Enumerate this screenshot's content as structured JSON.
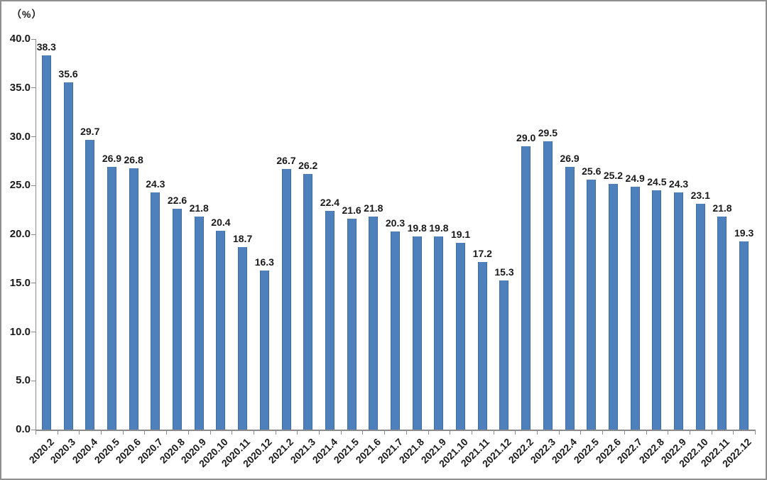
{
  "chart_data": {
    "type": "bar",
    "title": "",
    "unit_label": "（%）",
    "xlabel": "",
    "ylabel": "（%）",
    "categories": [
      "2020.2",
      "2020.3",
      "2020.4",
      "2020.5",
      "2020.6",
      "2020.7",
      "2020.8",
      "2020.9",
      "2020.10",
      "2020.11",
      "2020.12",
      "2021.2",
      "2021.3",
      "2021.4",
      "2021.5",
      "2021.6",
      "2021.7",
      "2021.8",
      "2021.9",
      "2021.10",
      "2021.11",
      "2021.12",
      "2022.2",
      "2022.3",
      "2022.4",
      "2022.5",
      "2022.6",
      "2022.7",
      "2022.8",
      "2022.9",
      "2022.10",
      "2022.11",
      "2022.12"
    ],
    "values": [
      38.3,
      35.6,
      29.7,
      26.9,
      26.8,
      24.3,
      22.6,
      21.8,
      20.4,
      18.7,
      16.3,
      26.7,
      26.2,
      22.4,
      21.6,
      21.8,
      20.3,
      19.8,
      19.8,
      19.1,
      17.2,
      15.3,
      29.0,
      29.5,
      26.9,
      25.6,
      25.2,
      24.9,
      24.5,
      24.3,
      23.1,
      21.8,
      19.3
    ],
    "data_labels": [
      "38.3",
      "35.6",
      "29.7",
      "26.9",
      "26.8",
      "24.3",
      "22.6",
      "21.8",
      "20.4",
      "18.7",
      "16.3",
      "26.7",
      "26.2",
      "22.4",
      "21.6",
      "21.8",
      "20.3",
      "19.8",
      "19.8",
      "19.1",
      "17.2",
      "15.3",
      "29.0",
      "29.5",
      "26.9",
      "25.6",
      "25.2",
      "24.9",
      "24.5",
      "24.3",
      "23.1",
      "21.8",
      "19.3"
    ],
    "y_ticks": [
      "0.0",
      "5.0",
      "10.0",
      "15.0",
      "20.0",
      "25.0",
      "30.0",
      "35.0",
      "40.0"
    ],
    "ylim": [
      0,
      40
    ],
    "y_tick_step": 5,
    "grid": false,
    "legend": "none",
    "colors": {
      "bar": "#4E80BC",
      "bar_edge": "#3E6DA5",
      "axis": "#8A8A8A",
      "text": "#1A1A1A",
      "frame_border": "#8F8F8F",
      "background": "#FFFFFF"
    }
  }
}
